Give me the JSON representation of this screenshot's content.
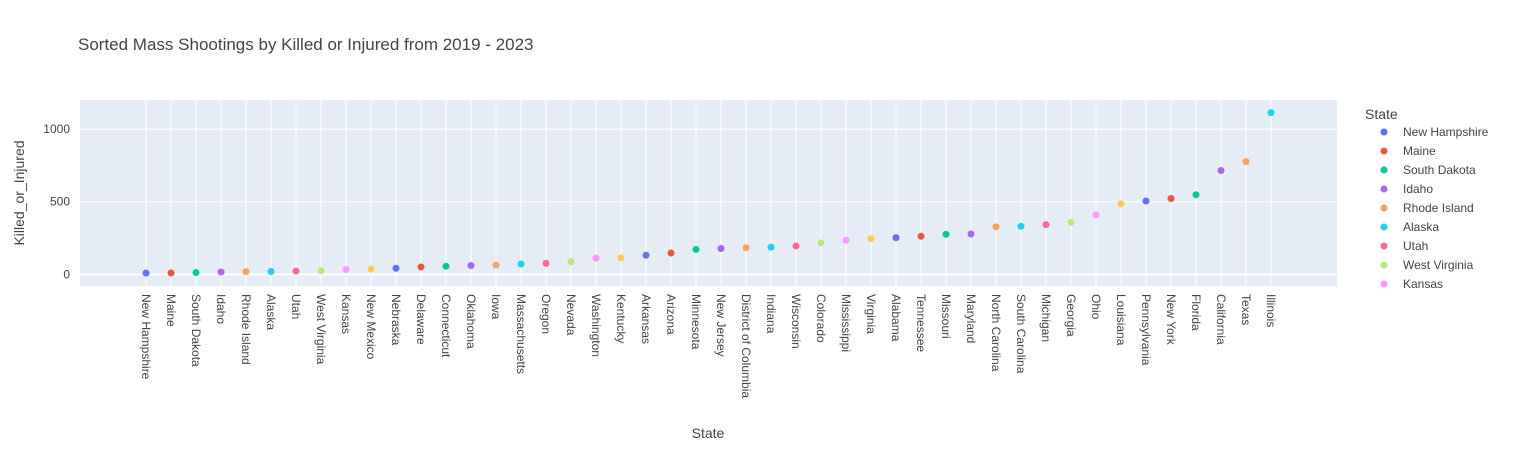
{
  "chart_data": {
    "type": "scatter",
    "title": "Sorted Mass Shootings by Killed or Injured from 2019 - 2023",
    "xlabel": "State",
    "ylabel": "Killed_or_Injured",
    "ylim": [
      -80,
      1200
    ],
    "yticks": [
      0,
      500,
      1000
    ],
    "grid": true,
    "legend": {
      "title": "State",
      "placement": "right",
      "visible_entries": [
        "New Hampshire",
        "Maine",
        "South Dakota",
        "Idaho",
        "Rhode Island",
        "Alaska",
        "Utah",
        "West Virginia",
        "Kansas"
      ]
    },
    "palette": [
      "#636efa",
      "#EF553B",
      "#00cc96",
      "#ab63fa",
      "#FFA15A",
      "#19d3f3",
      "#FF6692",
      "#B6E880",
      "#FF97FF",
      "#FECB52"
    ],
    "series": [
      {
        "name": "New Hampshire",
        "x": "New Hampshire",
        "y": 9
      },
      {
        "name": "Maine",
        "x": "Maine",
        "y": 10
      },
      {
        "name": "South Dakota",
        "x": "South Dakota",
        "y": 13
      },
      {
        "name": "Idaho",
        "x": "Idaho",
        "y": 16
      },
      {
        "name": "Rhode Island",
        "x": "Rhode Island",
        "y": 19
      },
      {
        "name": "Alaska",
        "x": "Alaska",
        "y": 20
      },
      {
        "name": "Utah",
        "x": "Utah",
        "y": 22
      },
      {
        "name": "West Virginia",
        "x": "West Virginia",
        "y": 24
      },
      {
        "name": "Kansas",
        "x": "Kansas",
        "y": 33
      },
      {
        "name": "New Mexico",
        "x": "New Mexico",
        "y": 37
      },
      {
        "name": "Nebraska",
        "x": "Nebraska",
        "y": 42
      },
      {
        "name": "Delaware",
        "x": "Delaware",
        "y": 51
      },
      {
        "name": "Connecticut",
        "x": "Connecticut",
        "y": 56
      },
      {
        "name": "Oklahoma",
        "x": "Oklahoma",
        "y": 61
      },
      {
        "name": "Iowa",
        "x": "Iowa",
        "y": 64
      },
      {
        "name": "Massachusetts",
        "x": "Massachusetts",
        "y": 71
      },
      {
        "name": "Oregon",
        "x": "Oregon",
        "y": 76
      },
      {
        "name": "Nevada",
        "x": "Nevada",
        "y": 87
      },
      {
        "name": "Washington",
        "x": "Washington",
        "y": 112
      },
      {
        "name": "Kentucky",
        "x": "Kentucky",
        "y": 114
      },
      {
        "name": "Arkansas",
        "x": "Arkansas",
        "y": 132
      },
      {
        "name": "Arizona",
        "x": "Arizona",
        "y": 147
      },
      {
        "name": "Minnesota",
        "x": "Minnesota",
        "y": 172
      },
      {
        "name": "New Jersey",
        "x": "New Jersey",
        "y": 178
      },
      {
        "name": "District of Columbia",
        "x": "District of Columbia",
        "y": 183
      },
      {
        "name": "Indiana",
        "x": "Indiana",
        "y": 187
      },
      {
        "name": "Wisconsin",
        "x": "Wisconsin",
        "y": 195
      },
      {
        "name": "Colorado",
        "x": "Colorado",
        "y": 217
      },
      {
        "name": "Mississippi",
        "x": "Mississippi",
        "y": 235
      },
      {
        "name": "Virginia",
        "x": "Virginia",
        "y": 246
      },
      {
        "name": "Alabama",
        "x": "Alabama",
        "y": 253
      },
      {
        "name": "Tennessee",
        "x": "Tennessee",
        "y": 262
      },
      {
        "name": "Missouri",
        "x": "Missouri",
        "y": 276
      },
      {
        "name": "Maryland",
        "x": "Maryland",
        "y": 278
      },
      {
        "name": "North Carolina",
        "x": "North Carolina",
        "y": 327
      },
      {
        "name": "South Carolina",
        "x": "South Carolina",
        "y": 331
      },
      {
        "name": "Michigan",
        "x": "Michigan",
        "y": 342
      },
      {
        "name": "Georgia",
        "x": "Georgia",
        "y": 358
      },
      {
        "name": "Ohio",
        "x": "Ohio",
        "y": 408
      },
      {
        "name": "Louisiana",
        "x": "Louisiana",
        "y": 485
      },
      {
        "name": "Pennsylvania",
        "x": "Pennsylvania",
        "y": 505
      },
      {
        "name": "New York",
        "x": "New York",
        "y": 522
      },
      {
        "name": "Florida",
        "x": "Florida",
        "y": 548
      },
      {
        "name": "California",
        "x": "California",
        "y": 715
      },
      {
        "name": "Texas",
        "x": "Texas",
        "y": 776
      },
      {
        "name": "Illinois",
        "x": "Illinois",
        "y": 1113
      }
    ]
  }
}
